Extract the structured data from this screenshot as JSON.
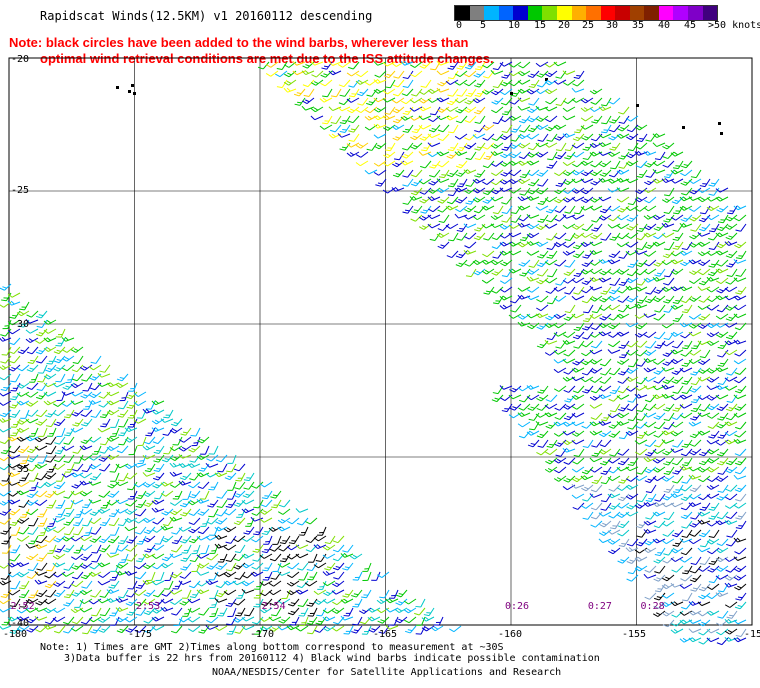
{
  "title": "Rapidscat Winds(12.5KM) v1 20160112 descending",
  "note": {
    "line1": "Note: black circles have been added to the wind barbs, wherever less than",
    "line2": "optimal wind retrieval conditions are met due to the ISS attitude changes."
  },
  "colorbar": {
    "unit": "knots",
    "colors": [
      "#000000",
      "#7f7f7f",
      "#00b4ff",
      "#0064ff",
      "#0000d0",
      "#00c800",
      "#7fe000",
      "#ffff00",
      "#ffb000",
      "#ff7000",
      "#ff0000",
      "#c80000",
      "#a04000",
      "#7f2000",
      "#ff00ff",
      "#b000ff",
      "#7f00c8",
      "#40007f"
    ],
    "labels": [
      "0",
      "5",
      "10",
      "15",
      "20",
      "25",
      "30",
      "35",
      "40",
      "45",
      ">50 knots"
    ]
  },
  "map": {
    "lat_labels": [
      "-20",
      "-25",
      "-30",
      "-35",
      "-40"
    ],
    "lon_labels": [
      "-180",
      "-175",
      "-170",
      "-165",
      "-160",
      "-155",
      "-15"
    ],
    "times": [
      {
        "label": "2:52",
        "lon": -179.7
      },
      {
        "label": "2:53",
        "lon": -174.7
      },
      {
        "label": "2:54",
        "lon": -169.7
      },
      {
        "label": "0:26",
        "lon": -160.0
      },
      {
        "label": "0:27",
        "lon": -156.7
      },
      {
        "label": "0:28",
        "lon": -154.6
      }
    ],
    "time_color": "#7f007f"
  },
  "footer": {
    "line1": "Note: 1) Times are GMT 2)Times along bottom correspond to measurement at ~30S",
    "line2": "3)Data buffer is 22 hrs from 20160112 4) Black wind barbs indicate possible contamination",
    "line3": "NOAA/NESDIS/Center for Satellite Applications and Research"
  }
}
